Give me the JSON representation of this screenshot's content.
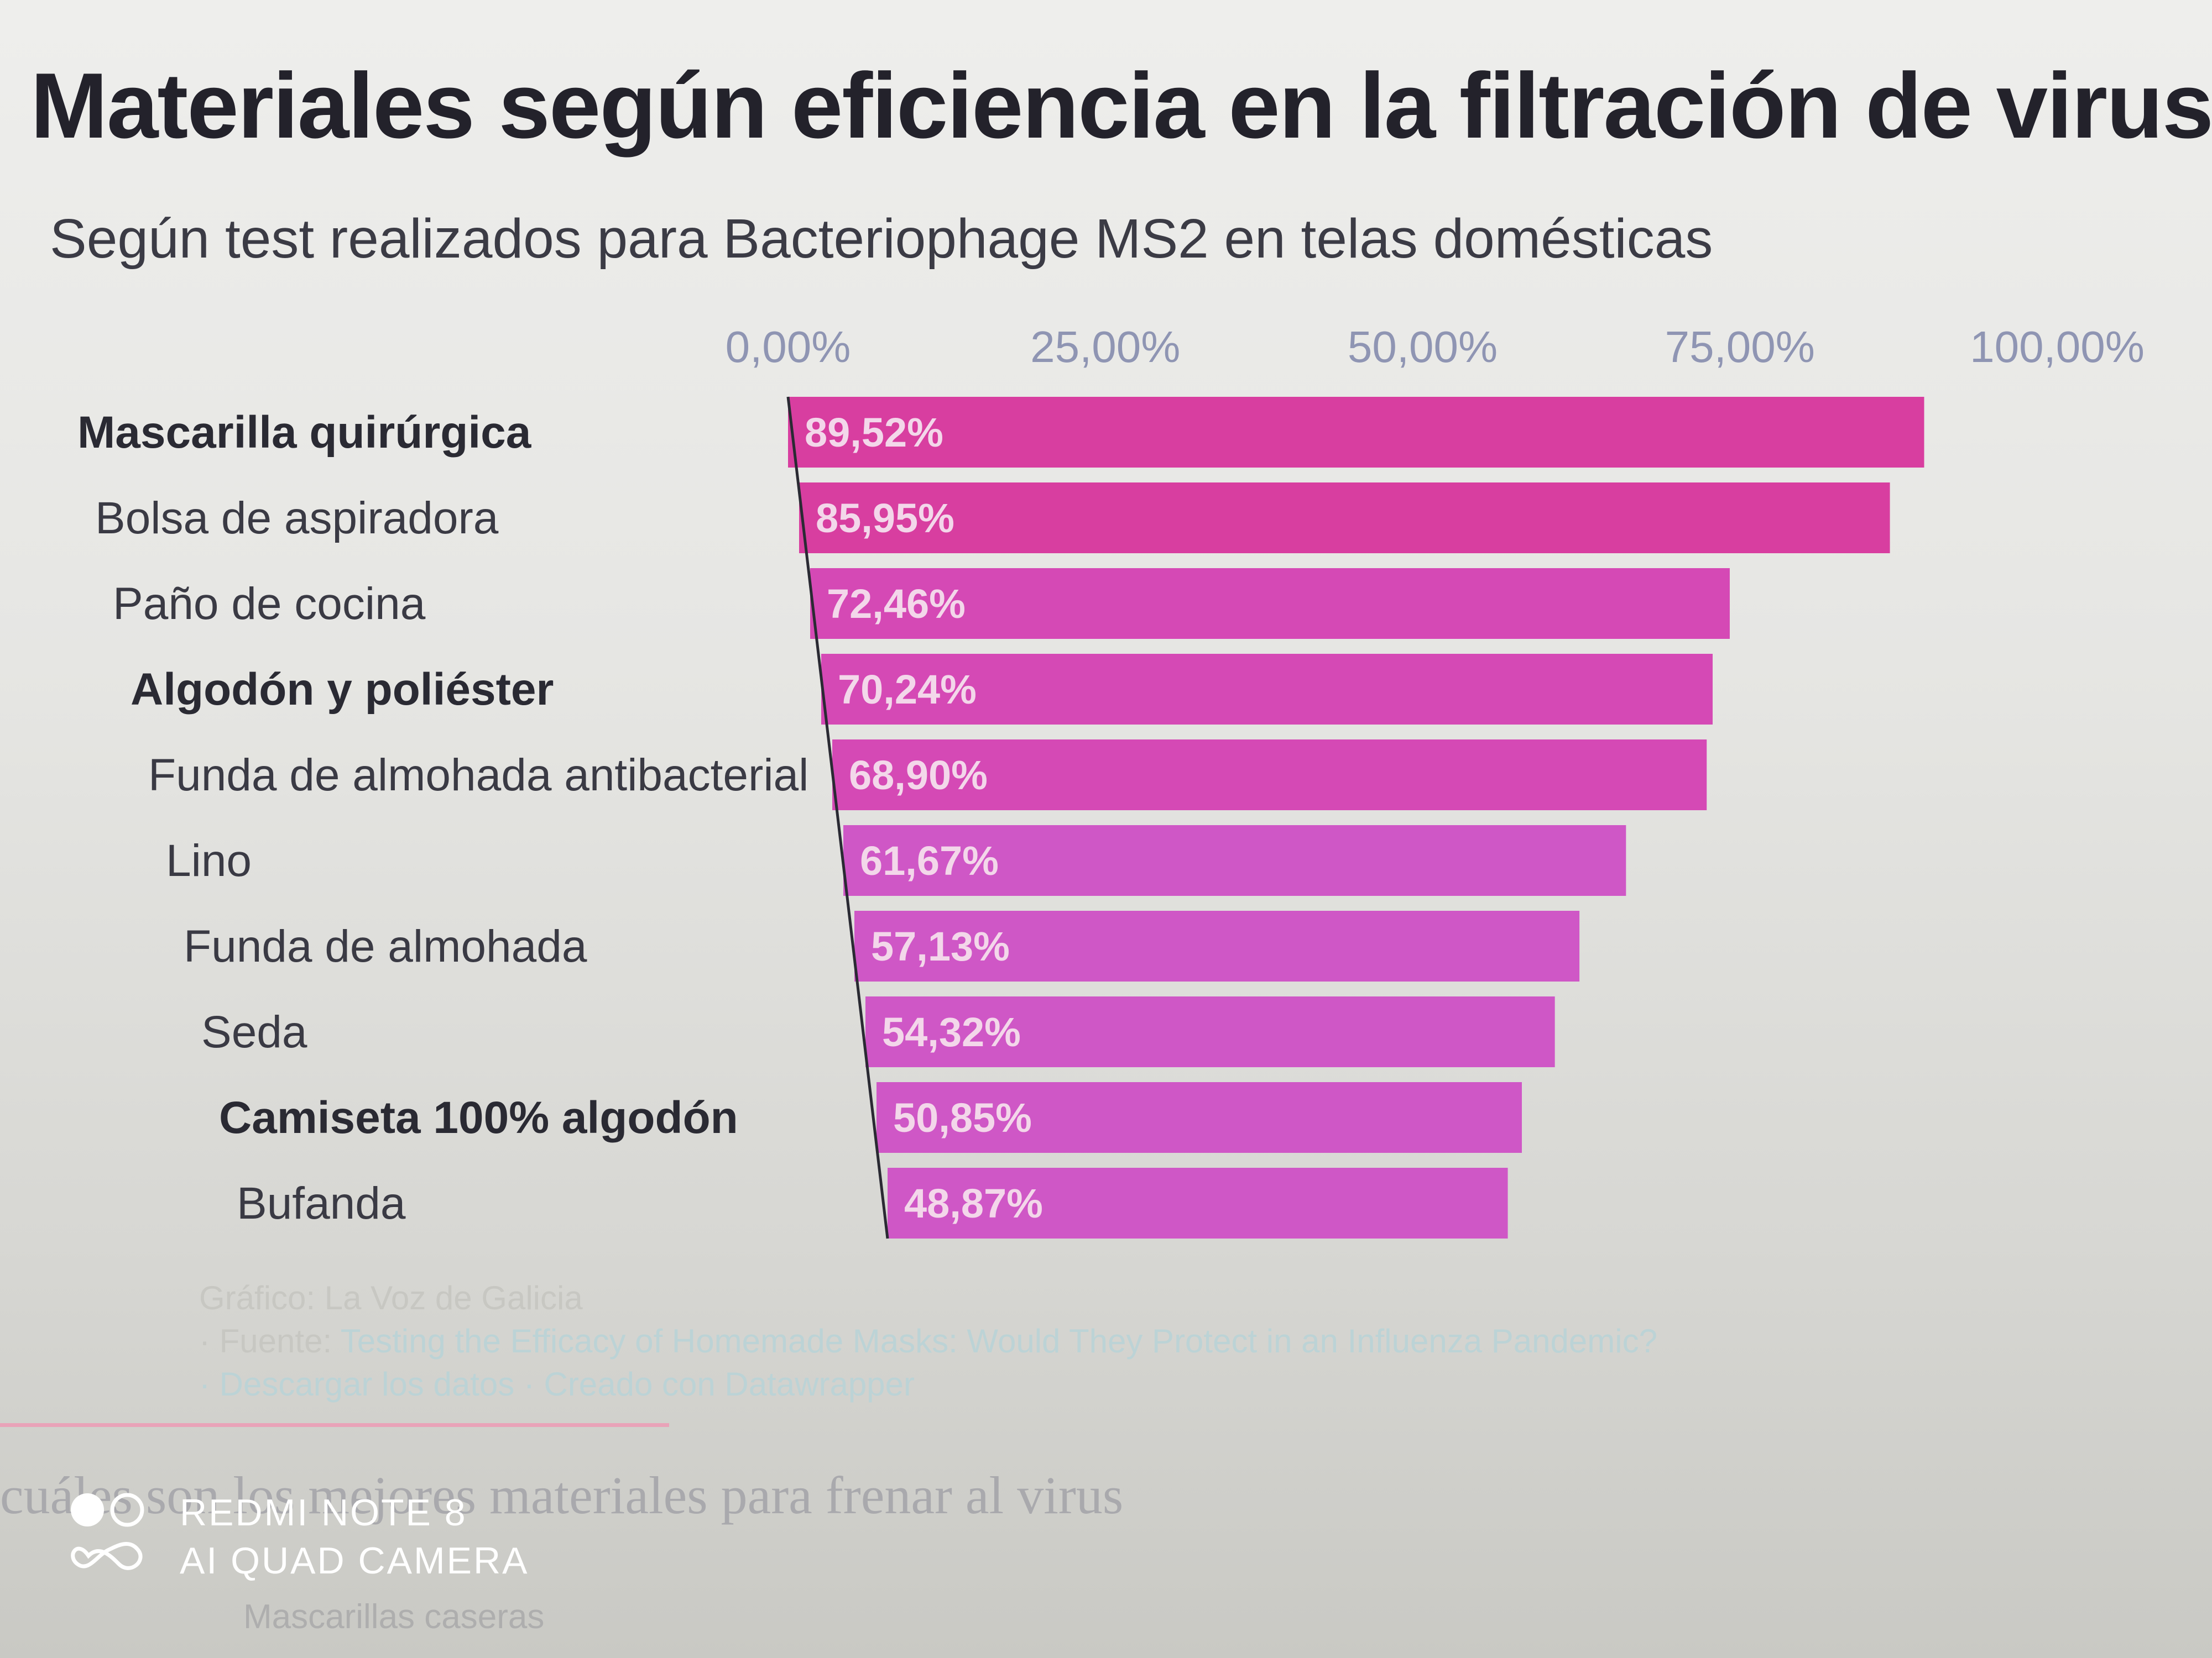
{
  "title": "Materiales según eficiencia en la filtración de virus",
  "subtitle": "Según test realizados para Bacteriophage MS2 en telas domésticas",
  "chart_data": {
    "type": "bar",
    "orientation": "horizontal",
    "xlim": [
      0,
      100
    ],
    "ticks": [
      0,
      25,
      50,
      75,
      100
    ],
    "tick_labels": [
      "0,00%",
      "25,00%",
      "50,00%",
      "75,00%",
      "100,00%"
    ],
    "gridlines": false,
    "bar_color": "#d83ea0",
    "categories": [
      "Mascarilla quirúrgica",
      "Bolsa de aspiradora",
      "Paño de cocina",
      "Algodón y poliéster",
      "Funda de almohada antibacterial",
      "Lino",
      "Funda de almohada",
      "Seda",
      "Camiseta 100% algodón",
      "Bufanda"
    ],
    "values": [
      89.52,
      85.95,
      72.46,
      70.24,
      68.9,
      61.67,
      57.13,
      54.32,
      50.85,
      48.87
    ],
    "value_labels": [
      "89,52%",
      "85,95%",
      "72,46%",
      "70,24%",
      "68,90%",
      "61,67%",
      "57,13%",
      "54,32%",
      "50,85%",
      "48,87%"
    ],
    "bold_categories": [
      0,
      3,
      8
    ]
  },
  "credits": {
    "graphic": "Gráfico: La Voz de Galicia",
    "source_prefix": "· Fuente:",
    "source_link": "Testing the Efficacy of Homemade Masks: Would They Protect in an Influenza Pandemic?",
    "download": "· Descargar los datos",
    "created": "· Creado con Datawrapper"
  },
  "article": {
    "next_heading": "cuáles son los mejores materiales para frenar al virus",
    "list_item": "Mascarillas caseras"
  },
  "watermark": {
    "line1": "REDMI NOTE 8",
    "line2": "AI QUAD CAMERA"
  }
}
